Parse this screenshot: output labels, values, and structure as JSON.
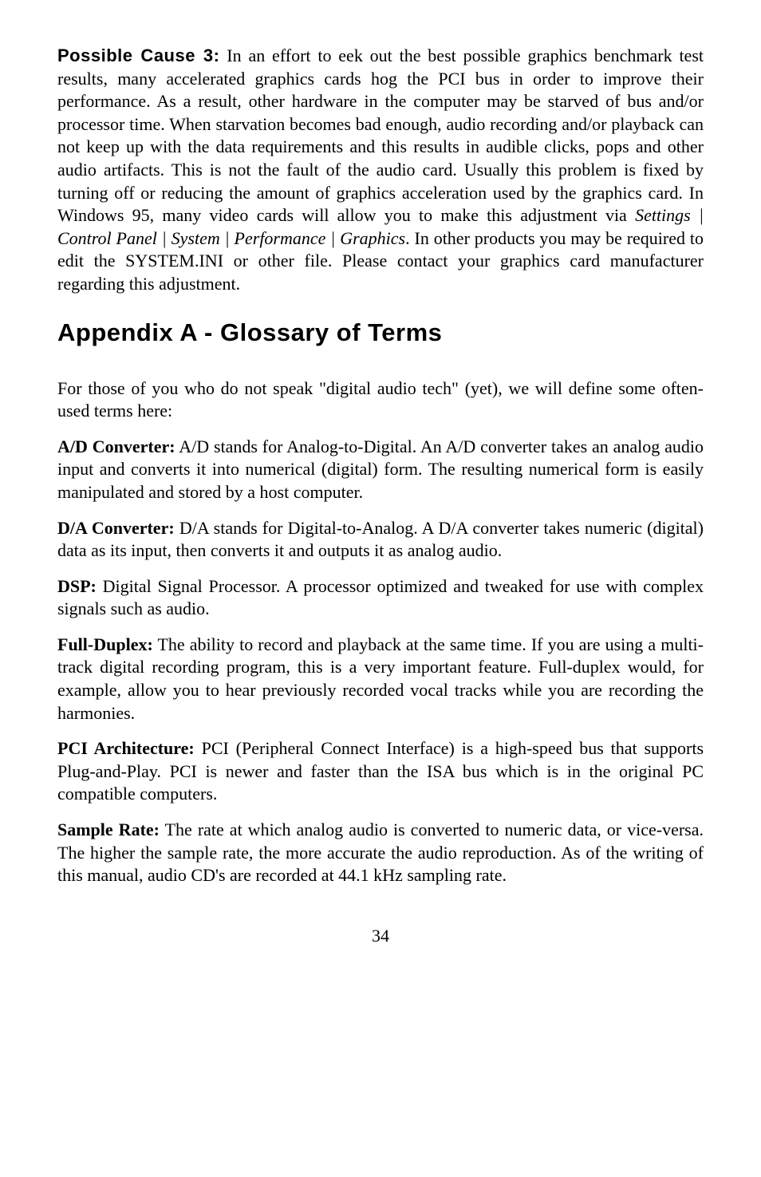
{
  "cause3": {
    "label": "Possible Cause 3:",
    "body_part1": "  In an effort to eek out the best possible graphics benchmark test results, many accelerated graphics cards hog the PCI bus in order to improve their performance.  As a result, other hardware in the computer may be starved of bus and/or processor time.  When starvation becomes bad enough, audio recording and/or playback can not keep up with the data requirements and this results in audible clicks, pops and other audio artifacts.  This is not the fault of the audio card.  Usually this problem is fixed by turning off or reducing the amount of graphics acceleration used by the graphics card.  In Windows 95, many video cards will allow you to make this adjustment via ",
    "italic_path": "Settings | Control Panel | System | Performance | Graphics",
    "body_part2": ".  In other products you may be required to edit the SYSTEM.INI or other file.  Please contact your graphics card manufacturer regarding this adjustment."
  },
  "heading": "Appendix A - Glossary of Terms",
  "intro": "For those of you who do not speak \"digital audio tech\" (yet), we will define some often-used terms here:",
  "terms": {
    "ad": {
      "label": "A/D Converter:",
      "body": "  A/D stands for Analog-to-Digital.  An A/D converter takes an analog audio input and converts it into numerical (digital) form.  The resulting numerical form is easily manipulated and stored by a host computer."
    },
    "da": {
      "label": "D/A Converter:",
      "body": "  D/A stands for Digital-to-Analog.  A D/A converter takes numeric (digital) data as its input, then converts it and outputs it as analog audio."
    },
    "dsp": {
      "label": "DSP:",
      "body": "  Digital Signal Processor.  A processor optimized and tweaked for use with complex signals such as audio."
    },
    "fullduplex": {
      "label": "Full-Duplex:",
      "body": "  The ability to record and playback at the same time.  If you are using a multi-track digital recording program, this is a very important feature.  Full-duplex would, for example, allow you to hear previously recorded vocal tracks while you are recording the harmonies."
    },
    "pci": {
      "label": "PCI Architecture:",
      "body": "  PCI (Peripheral Connect Interface) is a high-speed bus that supports Plug-and-Play.  PCI is newer and faster than the ISA bus which is in the original PC compatible computers."
    },
    "samplerate": {
      "label": "Sample Rate:",
      "body": " The rate at which analog audio is converted to numeric data, or vice-versa.  The higher the sample rate, the more accurate the audio reproduction.  As of the writing of this manual, audio CD's are recorded at 44.1 kHz sampling rate."
    }
  },
  "page_number": "34"
}
